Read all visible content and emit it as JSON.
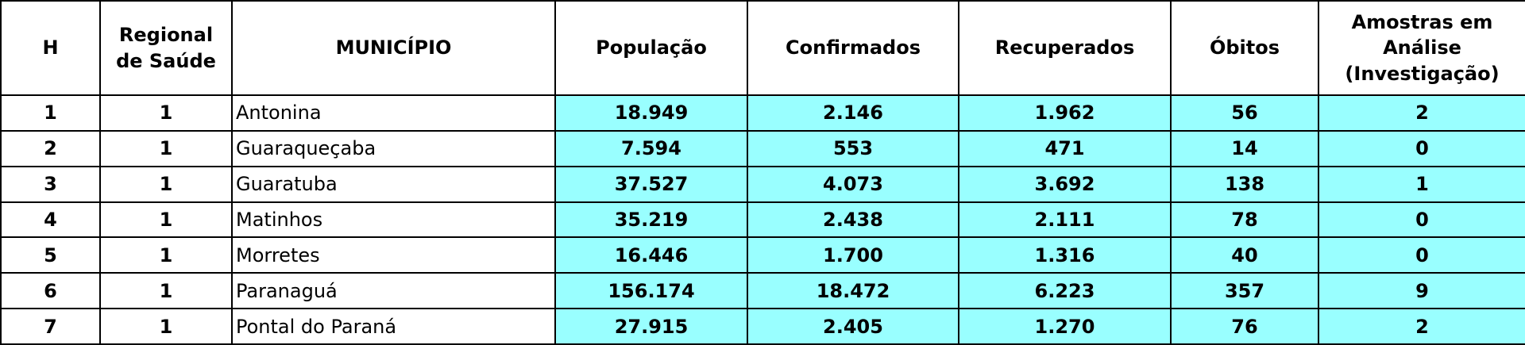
{
  "table": {
    "header": [
      "H",
      "Regional de Saúde",
      "MUNICÍPIO",
      "População",
      "Confirmados",
      "Recuperados",
      "Óbitos",
      "Amostras em Análise (Investigação)"
    ],
    "rows": [
      [
        "1",
        "1",
        "Antonina",
        "18.949",
        "2.146",
        "1.962",
        "56",
        "2"
      ],
      [
        "2",
        "1",
        "Guaraqueçaba",
        "7.594",
        "553",
        "471",
        "14",
        "0"
      ],
      [
        "3",
        "1",
        "Guaratuba",
        "37.527",
        "4.073",
        "3.692",
        "138",
        "1"
      ],
      [
        "4",
        "1",
        "Matinhos",
        "35.219",
        "2.438",
        "2.111",
        "78",
        "0"
      ],
      [
        "5",
        "1",
        "Morretes",
        "16.446",
        "1.700",
        "1.316",
        "40",
        "0"
      ],
      [
        "6",
        "1",
        "Paranaguá",
        "156.174",
        "18.472",
        "6.223",
        "357",
        "9"
      ],
      [
        "7",
        "1",
        "Pontal do Paraná",
        "27.915",
        "2.405",
        "1.270",
        "76",
        "2"
      ]
    ]
  }
}
